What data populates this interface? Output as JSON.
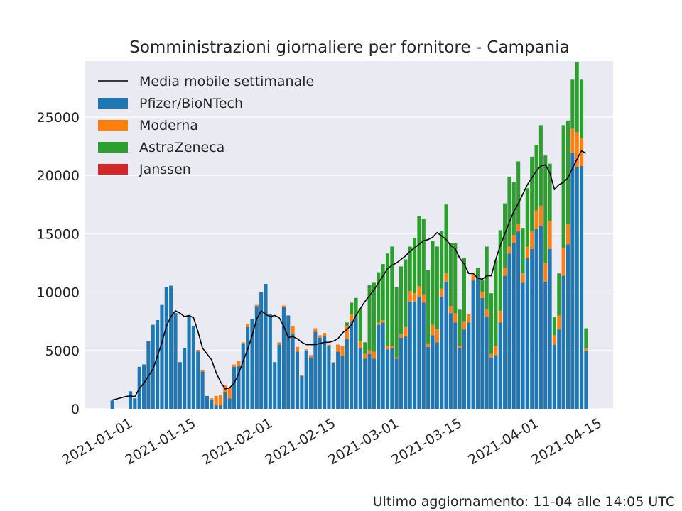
{
  "chart_data": {
    "type": "bar",
    "stacked": true,
    "title": "Somministrazioni giornaliere per fornitore - Campania",
    "footnote": "Ultimo aggiornamento: 11-04 alle 14:05 UTC",
    "x": [
      "2020-12-27",
      "2020-12-28",
      "2020-12-29",
      "2020-12-30",
      "2020-12-31",
      "2021-01-01",
      "2021-01-02",
      "2021-01-03",
      "2021-01-04",
      "2021-01-05",
      "2021-01-06",
      "2021-01-07",
      "2021-01-08",
      "2021-01-09",
      "2021-01-10",
      "2021-01-11",
      "2021-01-12",
      "2021-01-13",
      "2021-01-14",
      "2021-01-15",
      "2021-01-16",
      "2021-01-17",
      "2021-01-18",
      "2021-01-19",
      "2021-01-20",
      "2021-01-21",
      "2021-01-22",
      "2021-01-23",
      "2021-01-24",
      "2021-01-25",
      "2021-01-26",
      "2021-01-27",
      "2021-01-28",
      "2021-01-29",
      "2021-01-30",
      "2021-01-31",
      "2021-02-01",
      "2021-02-02",
      "2021-02-03",
      "2021-02-04",
      "2021-02-05",
      "2021-02-06",
      "2021-02-07",
      "2021-02-08",
      "2021-02-09",
      "2021-02-10",
      "2021-02-11",
      "2021-02-12",
      "2021-02-13",
      "2021-02-14",
      "2021-02-15",
      "2021-02-16",
      "2021-02-17",
      "2021-02-18",
      "2021-02-19",
      "2021-02-20",
      "2021-02-21",
      "2021-02-22",
      "2021-02-23",
      "2021-02-24",
      "2021-02-25",
      "2021-02-26",
      "2021-02-27",
      "2021-02-28",
      "2021-03-01",
      "2021-03-02",
      "2021-03-03",
      "2021-03-04",
      "2021-03-05",
      "2021-03-06",
      "2021-03-07",
      "2021-03-08",
      "2021-03-09",
      "2021-03-10",
      "2021-03-11",
      "2021-03-12",
      "2021-03-13",
      "2021-03-14",
      "2021-03-15",
      "2021-03-16",
      "2021-03-17",
      "2021-03-18",
      "2021-03-19",
      "2021-03-20",
      "2021-03-21",
      "2021-03-22",
      "2021-03-23",
      "2021-03-24",
      "2021-03-25",
      "2021-03-26",
      "2021-03-27",
      "2021-03-28",
      "2021-03-29",
      "2021-03-30",
      "2021-03-31",
      "2021-04-01",
      "2021-04-02",
      "2021-04-03",
      "2021-04-04",
      "2021-04-05",
      "2021-04-06",
      "2021-04-07",
      "2021-04-08",
      "2021-04-09",
      "2021-04-10",
      "2021-04-11"
    ],
    "series": [
      {
        "name": "Pfizer/BioNTech",
        "color": "#1f77b4",
        "values": [
          700,
          0,
          0,
          0,
          1500,
          900,
          3600,
          3800,
          5800,
          7200,
          7600,
          8900,
          10450,
          10550,
          8200,
          4000,
          5200,
          8000,
          7100,
          4900,
          3200,
          1100,
          800,
          300,
          300,
          1400,
          900,
          3600,
          3700,
          5600,
          7000,
          7700,
          8800,
          10000,
          10700,
          8100,
          4000,
          5500,
          8700,
          8000,
          6400,
          4900,
          2800,
          5000,
          4400,
          6600,
          6100,
          6200,
          5400,
          3900,
          4900,
          4500,
          6000,
          7500,
          7800,
          5200,
          4300,
          4700,
          4300,
          7200,
          7400,
          5100,
          5200,
          4300,
          6100,
          6200,
          9200,
          9200,
          9600,
          9100,
          5300,
          6300,
          5700,
          9600,
          10900,
          8200,
          7400,
          5200,
          6800,
          7400,
          11000,
          11300,
          9500,
          7900,
          4400,
          4600,
          7400,
          11400,
          13300,
          14200,
          15200,
          10800,
          12900,
          13700,
          15400,
          15700,
          10900,
          13700,
          5500,
          6800,
          11400,
          14100,
          21900,
          20700,
          20800,
          5000
        ]
      },
      {
        "name": "Moderna",
        "color": "#ff7f0e",
        "values": [
          0,
          0,
          0,
          0,
          0,
          0,
          0,
          0,
          0,
          0,
          0,
          0,
          0,
          0,
          0,
          0,
          0,
          0,
          0,
          150,
          150,
          0,
          100,
          800,
          900,
          600,
          900,
          200,
          400,
          100,
          300,
          0,
          100,
          0,
          0,
          0,
          0,
          200,
          150,
          0,
          700,
          400,
          100,
          100,
          200,
          300,
          200,
          300,
          100,
          100,
          600,
          900,
          1100,
          600,
          0,
          600,
          400,
          300,
          600,
          200,
          200,
          300,
          200,
          100,
          300,
          800,
          900,
          700,
          900,
          700,
          300,
          900,
          1100,
          700,
          700,
          600,
          800,
          200,
          700,
          700,
          600,
          0,
          500,
          600,
          300,
          800,
          1000,
          700,
          600,
          700,
          600,
          800,
          1000,
          1500,
          1600,
          1700,
          1600,
          2400,
          800,
          1200,
          2400,
          1700,
          2100,
          3000,
          2400,
          200
        ]
      },
      {
        "name": "AstraZeneca",
        "color": "#2ca02c",
        "values": [
          0,
          0,
          0,
          0,
          0,
          0,
          0,
          0,
          0,
          0,
          0,
          0,
          0,
          0,
          0,
          0,
          0,
          0,
          0,
          0,
          0,
          0,
          0,
          0,
          0,
          0,
          0,
          0,
          0,
          0,
          0,
          0,
          0,
          0,
          0,
          0,
          0,
          0,
          0,
          0,
          0,
          0,
          0,
          0,
          0,
          0,
          0,
          0,
          0,
          0,
          0,
          0,
          300,
          1000,
          1700,
          2800,
          1000,
          5600,
          5900,
          4300,
          4800,
          7900,
          8500,
          6000,
          5800,
          5800,
          3800,
          4700,
          6000,
          6500,
          6300,
          7200,
          7100,
          4900,
          5900,
          5400,
          6000,
          3100,
          5400,
          0,
          0,
          800,
          1000,
          5400,
          5200,
          7300,
          6900,
          5500,
          6000,
          4500,
          5400,
          3900,
          5000,
          6400,
          5600,
          6900,
          9200,
          4900,
          1600,
          3600,
          10500,
          8900,
          4200,
          6000,
          5000,
          1700
        ]
      },
      {
        "name": "Janssen",
        "color": "#d62728",
        "values": [
          0,
          0,
          0,
          0,
          0,
          0,
          0,
          0,
          0,
          0,
          0,
          0,
          0,
          0,
          0,
          0,
          0,
          0,
          0,
          0,
          0,
          0,
          0,
          0,
          0,
          0,
          0,
          0,
          0,
          0,
          0,
          0,
          0,
          0,
          0,
          0,
          0,
          0,
          0,
          0,
          0,
          0,
          0,
          0,
          0,
          0,
          0,
          0,
          0,
          0,
          0,
          0,
          0,
          0,
          0,
          0,
          0,
          0,
          0,
          0,
          0,
          0,
          0,
          0,
          0,
          0,
          0,
          0,
          0,
          0,
          0,
          0,
          0,
          0,
          0,
          0,
          0,
          0,
          0,
          0,
          0,
          0,
          0,
          0,
          0,
          0,
          0,
          0,
          0,
          0,
          0,
          0,
          0,
          0,
          0,
          0,
          0,
          0,
          0,
          0,
          0,
          0,
          0,
          0,
          0,
          0
        ]
      }
    ],
    "moving_average": {
      "name": "Media mobile settimanale",
      "color": "#000000",
      "values": [
        750,
        850,
        950,
        1050,
        1100,
        1050,
        1750,
        2200,
        2800,
        3400,
        4500,
        5700,
        7100,
        7900,
        8400,
        8200,
        7900,
        8000,
        7800,
        6600,
        5200,
        4700,
        4200,
        3100,
        2300,
        1700,
        1800,
        2200,
        3000,
        4100,
        5100,
        6300,
        7700,
        8400,
        8100,
        7900,
        8000,
        7800,
        7100,
        6100,
        6200,
        6000,
        5700,
        5500,
        5500,
        5500,
        5600,
        5700,
        5700,
        5800,
        6000,
        6500,
        6800,
        7200,
        8000,
        8600,
        9200,
        9700,
        10200,
        10800,
        11400,
        12000,
        12300,
        12500,
        12800,
        13100,
        13500,
        13800,
        14100,
        14400,
        14500,
        14700,
        15100,
        14800,
        14500,
        14000,
        13700,
        12900,
        12400,
        11600,
        11600,
        11200,
        11100,
        11400,
        11400,
        12800,
        14000,
        15000,
        16000,
        16900,
        17600,
        18400,
        19200,
        19800,
        20400,
        20800,
        20900,
        20200,
        18800,
        19200,
        19400,
        19800,
        20600,
        21400,
        22100,
        21900
      ]
    },
    "xlim": [
      "2020-12-21",
      "2021-04-17"
    ],
    "xticks": [
      "2021-01-01",
      "2021-01-15",
      "2021-02-01",
      "2021-02-15",
      "2021-03-01",
      "2021-03-15",
      "2021-04-01",
      "2021-04-15"
    ],
    "ylim": [
      0,
      29800
    ],
    "yticks": [
      0,
      5000,
      10000,
      15000,
      20000,
      25000
    ],
    "grid": true,
    "legend": "upper left"
  }
}
